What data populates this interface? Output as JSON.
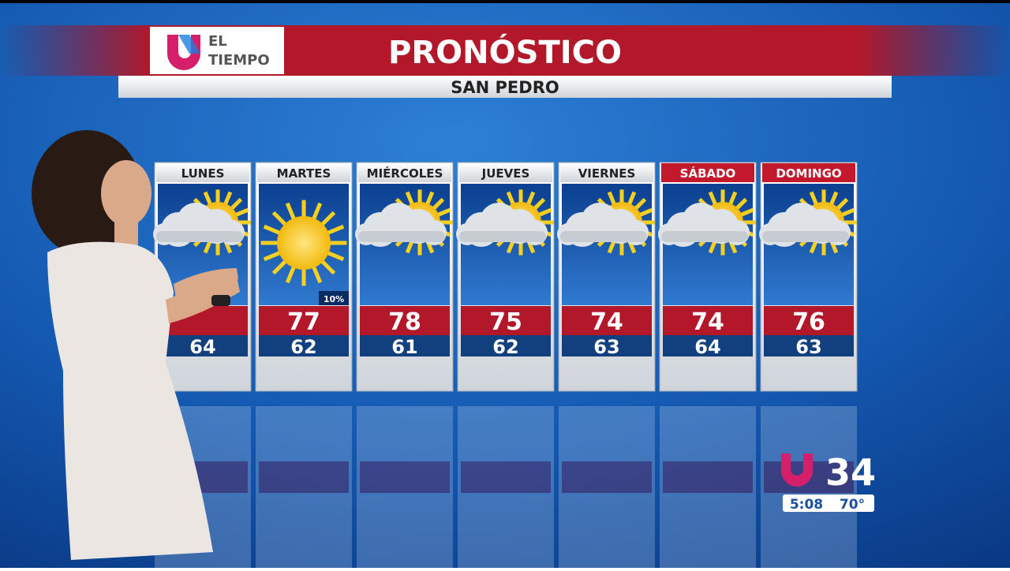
{
  "header": {
    "brand_line1": "EL",
    "brand_line2": "TIEMPO",
    "title": "PRONÓSTICO",
    "location": "SAN PEDRO"
  },
  "days": [
    {
      "name": "LUNES",
      "low": 64,
      "weekend": false
    },
    {
      "name": "MARTES",
      "high": 77,
      "low": 62,
      "precip": "10%",
      "icon": "sun",
      "weekend": false
    },
    {
      "name": "MIÉRCOLES",
      "high": 78,
      "low": 61,
      "weekend": false
    },
    {
      "name": "JUEVES",
      "high": 75,
      "low": 62,
      "weekend": false
    },
    {
      "name": "VIERNES",
      "high": 74,
      "low": 63,
      "weekend": false
    },
    {
      "name": "SÁBADO",
      "high": 74,
      "low": 64,
      "weekend": true
    },
    {
      "name": "DOMINGO",
      "high": 76,
      "low": 63,
      "weekend": true
    }
  ],
  "bug": {
    "channel": "34",
    "time": "5:08",
    "temperature": "70°"
  }
}
